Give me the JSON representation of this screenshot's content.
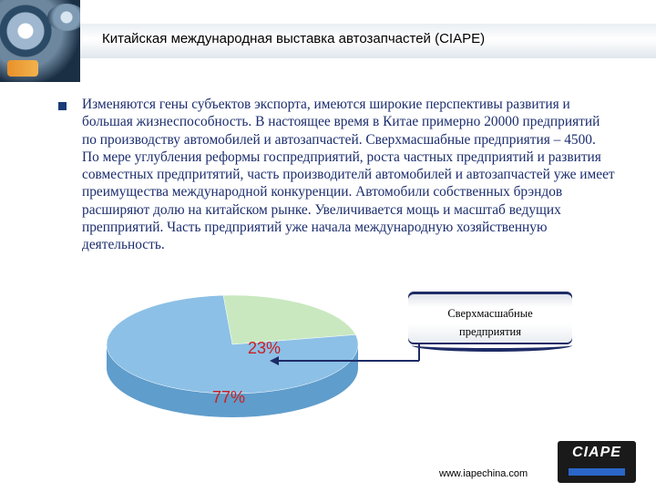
{
  "header": {
    "title": "Китайская международная выставка автозапчастей  (CIAPE)"
  },
  "body": {
    "paragraph": "Изменяются гены субъектов экспорта, имеются широкие перспективы развития и большая жизнеспособность. В настоящее время в Китае примерно 20000 предприятий по производству автомобилей и автозапчастей. Сверхмасшабные предприятия – 4500. По мере углубления реформы госпредприятий, роста частных предприятий и развития совместных предпритятий, часть производителй автомобилей и автозапчастей уже имеет преимущества международной конкуренции. Автомобили собственных брэндов расширяют долю на китайском рынке. Увеличивается мощь и масштаб ведущих препприятий. Часть предприятий уже начала международную хозяйственную деятельность."
  },
  "chart_data": {
    "type": "pie",
    "categories": [
      "Сверхмасшабные предприятия",
      ""
    ],
    "values": [
      23,
      77
    ],
    "data_labels": [
      "23%",
      "77%"
    ],
    "colors": [
      "#c9e8c0",
      "#8cc0e6"
    ]
  },
  "callout": {
    "line1": "Сверхмасшабные",
    "line2": "предприятия"
  },
  "footer": {
    "url": "www.iapechina.com",
    "logo_text": "CIAPE"
  },
  "colors": {
    "body_text": "#1b2d6e",
    "accent_label": "#cc1f1f",
    "bullet": "#1a3c78"
  }
}
